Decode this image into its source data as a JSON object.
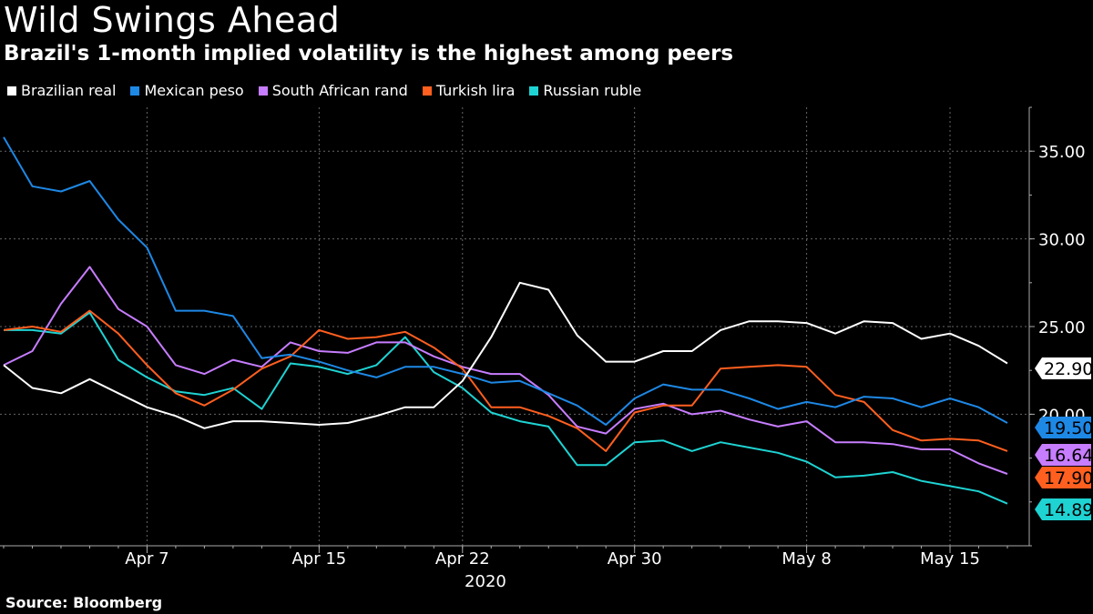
{
  "header": {
    "title": "Wild Swings Ahead",
    "subtitle": "Brazil's 1-month implied volatility is the highest among peers"
  },
  "source": "Source: Bloomberg",
  "chart_data": {
    "type": "line",
    "title": "Wild Swings Ahead",
    "subtitle": "Brazil's 1-month implied volatility is the highest among peers",
    "xlabel": "2020",
    "ylabel": "",
    "ylim": [
      12.5,
      37.5
    ],
    "y_ticks": [
      20,
      25,
      30,
      35
    ],
    "y_tick_labels": [
      "20.00",
      "25.00",
      "30.00",
      "35.00"
    ],
    "x_ticks": [
      {
        "x": 5,
        "label": "Apr 7"
      },
      {
        "x": 11,
        "label": "Apr 15"
      },
      {
        "x": 16,
        "label": "Apr 22"
      },
      {
        "x": 22,
        "label": "Apr 30"
      },
      {
        "x": 28,
        "label": "May 8"
      },
      {
        "x": 33,
        "label": "May 15"
      }
    ],
    "x_range": [
      0,
      36
    ],
    "grid": true,
    "legend_position": "top-left",
    "series": [
      {
        "name": "Brazilian real",
        "color": "#ffffff",
        "last_label": "22.90",
        "values": [
          22.8,
          21.5,
          21.2,
          22.0,
          21.2,
          20.4,
          19.9,
          19.2,
          19.6,
          19.6,
          19.5,
          19.4,
          19.5,
          19.9,
          20.4,
          20.4,
          21.9,
          24.4,
          27.5,
          27.1,
          24.5,
          23.0,
          23.0,
          23.6,
          23.6,
          24.8,
          25.3,
          25.3,
          25.2,
          24.6,
          25.3,
          25.2,
          24.3,
          24.6,
          23.9,
          22.9
        ]
      },
      {
        "name": "Mexican peso",
        "color": "#1e88e5",
        "last_label": "19.50",
        "values": [
          35.8,
          33.0,
          32.7,
          33.3,
          31.1,
          29.5,
          25.9,
          25.9,
          25.6,
          23.2,
          23.4,
          23.0,
          22.5,
          22.1,
          22.7,
          22.7,
          22.3,
          21.8,
          21.9,
          21.2,
          20.5,
          19.4,
          20.9,
          21.7,
          21.4,
          21.4,
          20.9,
          20.3,
          20.7,
          20.4,
          21.0,
          20.9,
          20.4,
          20.9,
          20.4,
          19.5
        ]
      },
      {
        "name": "South African rand",
        "color": "#c77dff",
        "last_label": "16.64",
        "values": [
          22.8,
          23.6,
          26.3,
          28.4,
          26.0,
          25.0,
          22.8,
          22.3,
          23.1,
          22.7,
          24.1,
          23.6,
          23.5,
          24.1,
          24.1,
          23.3,
          22.7,
          22.3,
          22.3,
          21.1,
          19.3,
          18.9,
          20.3,
          20.6,
          20.0,
          20.2,
          19.7,
          19.3,
          19.6,
          18.4,
          18.4,
          18.3,
          18.0,
          18.0,
          17.2,
          16.6
        ]
      },
      {
        "name": "Turkish lira",
        "color": "#ff5f1f",
        "last_label": "17.90",
        "values": [
          24.8,
          25.0,
          24.7,
          25.9,
          24.6,
          22.8,
          21.2,
          20.5,
          21.4,
          22.6,
          23.3,
          24.8,
          24.3,
          24.4,
          24.7,
          23.8,
          22.6,
          20.4,
          20.4,
          19.9,
          19.2,
          17.9,
          20.1,
          20.5,
          20.5,
          22.6,
          22.7,
          22.8,
          22.7,
          21.1,
          20.7,
          19.1,
          18.5,
          18.6,
          18.5,
          17.9
        ]
      },
      {
        "name": "Russian ruble",
        "color": "#1fd3d3",
        "last_label": "14.89",
        "values": [
          24.8,
          24.8,
          24.6,
          25.8,
          23.1,
          22.1,
          21.3,
          21.1,
          21.5,
          20.3,
          22.9,
          22.7,
          22.3,
          22.8,
          24.4,
          22.4,
          21.5,
          20.1,
          19.6,
          19.3,
          17.1,
          17.1,
          18.4,
          18.5,
          17.9,
          18.4,
          18.1,
          17.8,
          17.3,
          16.4,
          16.5,
          16.7,
          16.2,
          15.9,
          15.6,
          14.9
        ]
      }
    ]
  }
}
